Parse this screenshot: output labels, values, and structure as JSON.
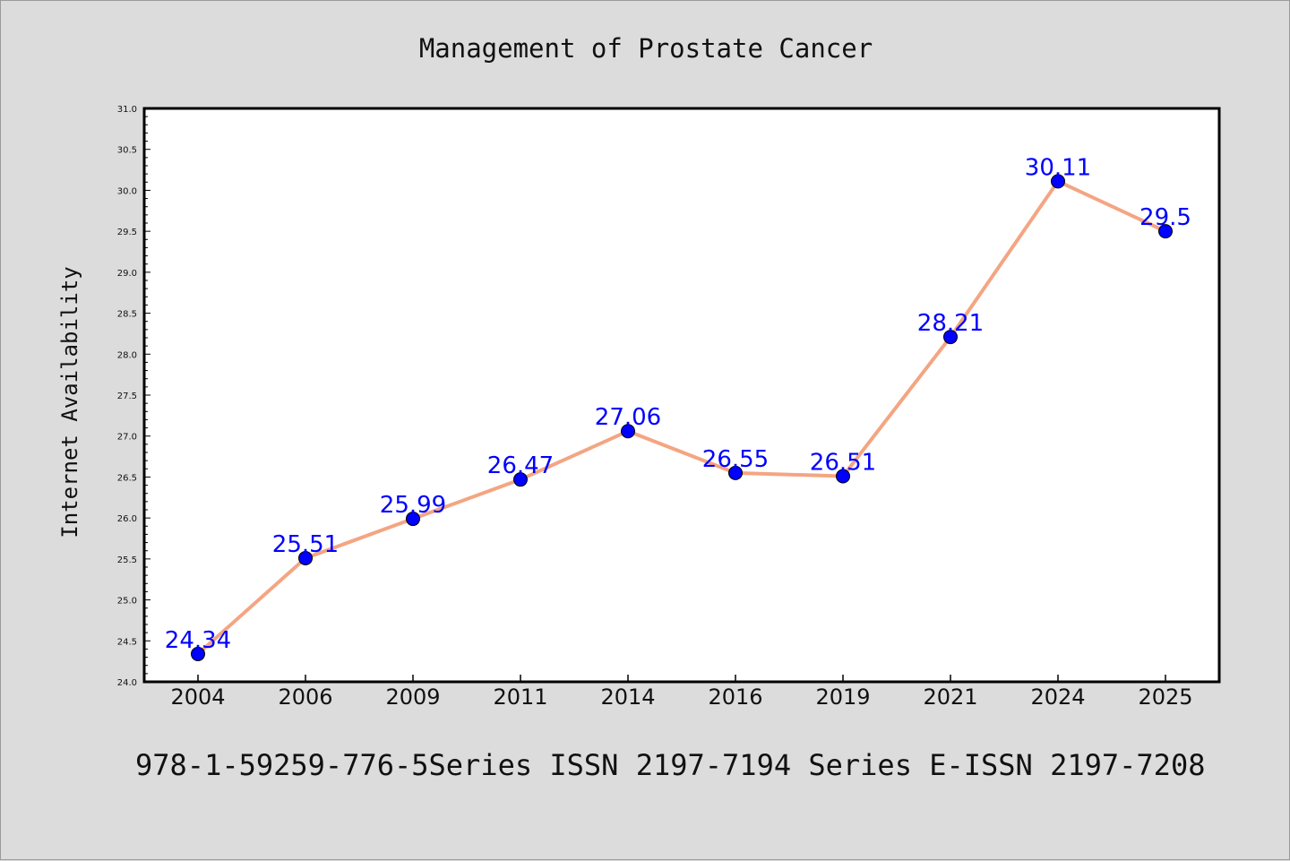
{
  "chart_data": {
    "type": "line",
    "title": "Management of Prostate Cancer",
    "xlabel": "",
    "ylabel": "Internet Availability",
    "categories": [
      "2004",
      "2006",
      "2009",
      "2011",
      "2014",
      "2016",
      "2019",
      "2021",
      "2024",
      "2025"
    ],
    "series": [
      {
        "values": [
          24.34,
          25.51,
          25.99,
          26.47,
          27.06,
          26.55,
          26.51,
          28.21,
          30.11,
          29.5
        ],
        "labels": [
          "24.34",
          "25.51",
          "25.99",
          "26.47",
          "27.06",
          "26.55",
          "26.51",
          "28.21",
          "30.11",
          "29.5"
        ],
        "line_color": "#f4a582",
        "marker_color": "#0000ff",
        "label_color": "#0000ff"
      }
    ],
    "ylim": [
      24.0,
      31.0
    ],
    "yticks": [
      "24.0",
      "24.5",
      "25.0",
      "25.5",
      "26.0",
      "26.5",
      "27.0",
      "27.5",
      "28.0",
      "28.5",
      "29.0",
      "29.5",
      "30.0",
      "30.5",
      "31.0"
    ],
    "grid": false,
    "legend": "none"
  },
  "footer": {
    "text": "978-1-59259-776-5Series ISSN 2197-7194 Series E-ISSN 2197-7208"
  },
  "colors": {
    "background": "#dcdcdc",
    "plot_background": "#ffffff",
    "axis": "#000000"
  }
}
